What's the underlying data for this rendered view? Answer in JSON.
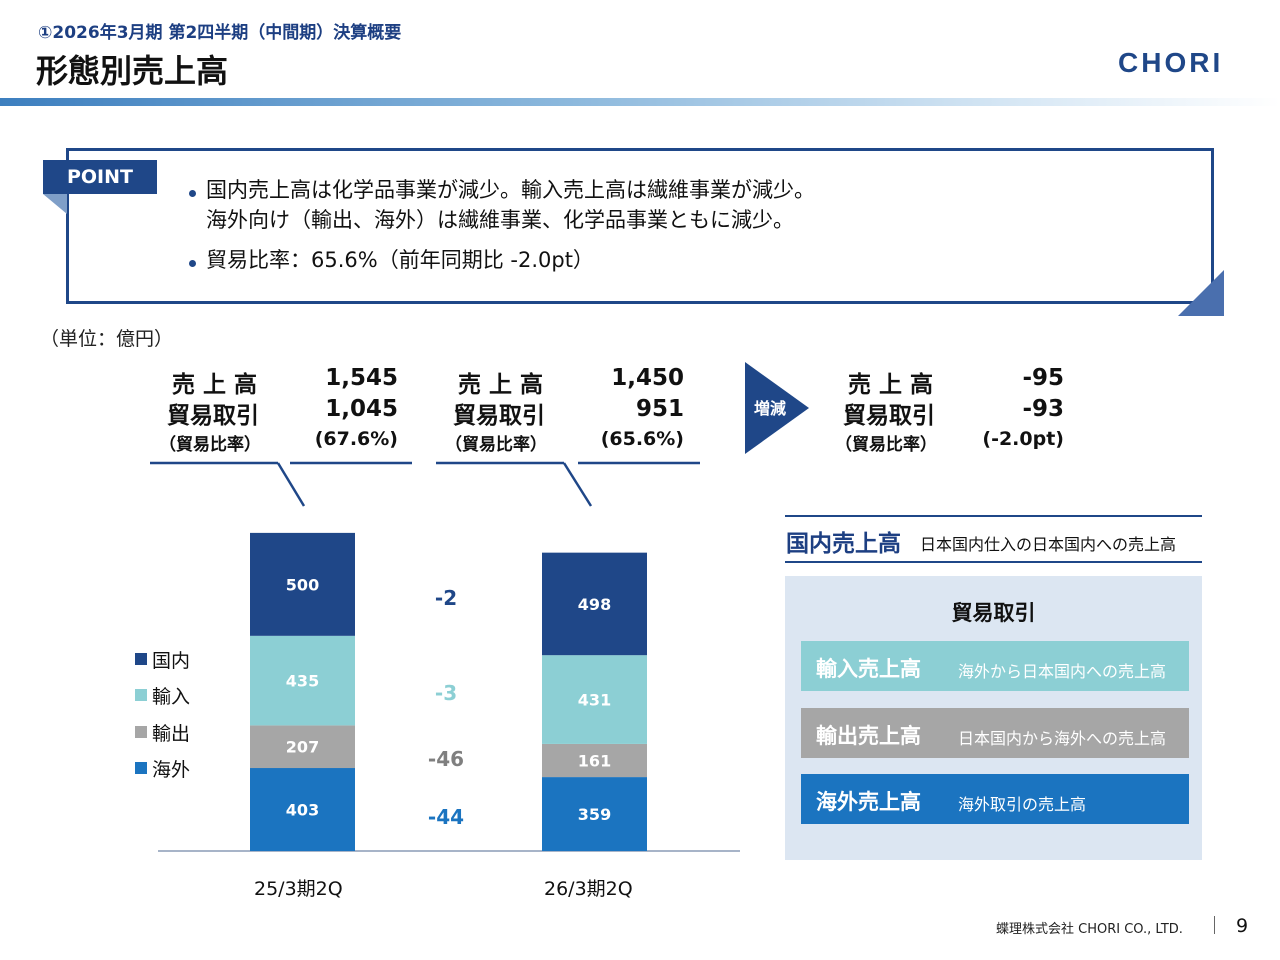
{
  "header": {
    "subtitle": "①2026年3月期 第2四半期（中間期）決算概要",
    "title": "形態別売上高",
    "logo_text": "CHORI"
  },
  "point": {
    "tag": "POINT",
    "bullets": [
      "国内売上高は化学品事業が減少。輸入売上高は繊維事業が減少。",
      "海外向け（輸出、海外）は繊維事業、化学品事業ともに減少。",
      "貿易比率：65.6%（前年同期比 -2.0pt）"
    ]
  },
  "unit": "（単位：億円）",
  "summary": {
    "labels": {
      "sales": "売 上 高",
      "trade": "貿易取引",
      "ratio": "（貿易比率）"
    },
    "prev": {
      "sales": "1,545",
      "trade": "1,045",
      "ratio": "(67.6%)"
    },
    "curr": {
      "sales": "1,450",
      "trade": "951",
      "ratio": "(65.6%)"
    },
    "change": {
      "badge": "増減",
      "sales": "-95",
      "trade": "-93",
      "ratio": "(-2.0pt)"
    }
  },
  "legend": [
    {
      "name": "国内",
      "color": "#1f4788"
    },
    {
      "name": "輸入",
      "color": "#8ccfd4"
    },
    {
      "name": "輸出",
      "color": "#a6a6a6"
    },
    {
      "name": "海外",
      "color": "#1b74c0"
    }
  ],
  "chart_data": {
    "type": "bar",
    "stacked": true,
    "title": "",
    "xlabel": "",
    "ylabel": "億円",
    "categories": [
      "25/3期2Q",
      "26/3期2Q"
    ],
    "series": [
      {
        "name": "海外",
        "values": [
          403,
          359
        ],
        "color": "#1b74c0",
        "change": "-44",
        "change_color": "#1b74c0"
      },
      {
        "name": "輸出",
        "values": [
          207,
          161
        ],
        "color": "#a6a6a6",
        "change": "-46",
        "change_color": "#7f7f7f"
      },
      {
        "name": "輸入",
        "values": [
          435,
          431
        ],
        "color": "#8ccfd4",
        "change": "-3",
        "change_color": "#8ccfd4"
      },
      {
        "name": "国内",
        "values": [
          500,
          498
        ],
        "color": "#1f4788",
        "change": "-2",
        "change_color": "#1f4788"
      }
    ]
  },
  "definitions": {
    "domestic": {
      "label": "国内売上高",
      "desc": "日本国内仕入の日本国内への売上高"
    },
    "trade_title": "貿易取引",
    "items": [
      {
        "label": "輸入売上高",
        "desc": "海外から日本国内への売上高",
        "color": "#8ccfd4"
      },
      {
        "label": "輸出売上高",
        "desc": "日本国内から海外への売上高",
        "color": "#a6a6a6"
      },
      {
        "label": "海外売上高",
        "desc": "海外取引の売上高",
        "color": "#1b74c0"
      }
    ]
  },
  "footer": {
    "company": "蝶理株式会社 CHORI CO., LTD.",
    "page": "9"
  }
}
